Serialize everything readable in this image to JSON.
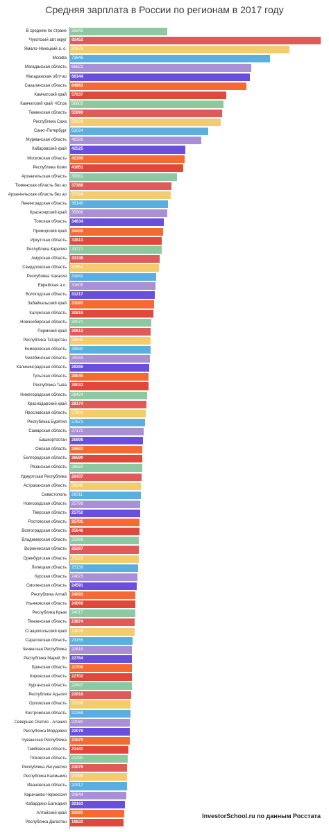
{
  "title": "Средняя зарплата в России по регионам в 2017 году",
  "source": "InvestorSchool.ru по данным Росстата",
  "chart_data": {
    "type": "bar",
    "orientation": "horizontal",
    "title": "Средняя зарплата в России по регионам в 2017 году",
    "xlabel": "",
    "ylabel": "",
    "xlim": [
      0,
      92452
    ],
    "grid": false,
    "categories": [
      "В среднем по стране",
      "Чукотский авт.округ",
      "Ямало-Ненецкий а. о.",
      "Москва",
      "Магаданская область",
      "Магаданская обл+ао",
      "Сахалинская область",
      "Камчатский край",
      "Камчатский край +Югра",
      "Тюменская область",
      "Республика Саха",
      "Санкт-Петербург",
      "Мурманская область",
      "Хабаровский край",
      "Московская область",
      "Республика Коми",
      "Архангельская область",
      "Тюменская область без ао",
      "Архангельская область без ао",
      "Ленинградская область",
      "Красноярский край",
      "Томская область",
      "Приморский край",
      "Иркутская область",
      "Республика Карелия",
      "Амурская область",
      "Свердловская область",
      "Республика Хакасия",
      "Еврейская а.о.",
      "Вологодская область",
      "Забайкальский край",
      "Калужская область",
      "Новосибирская область",
      "Пермский край",
      "Республика Татарстан",
      "Кемеровская область",
      "Челябинская область",
      "Калининградская область",
      "Тульская область",
      "Республика Тыва",
      "Нижегородская область",
      "Краснодарский край",
      "Ярославская область",
      "Республика Бурятия",
      "Самарская область",
      "Башкортостан",
      "Омская область",
      "Белгородская область",
      "Рязанская область",
      "Удмуртская Республика",
      "Астраханская область",
      "Севастополь",
      "Новгородская область",
      "Тверская область",
      "Ростовская область",
      "Волгоградская область",
      "Владимирская область",
      "Воронежская область",
      "Оренбургская область",
      "Липецкая область",
      "Курская область",
      "Смоленская область",
      "Республика Алтай",
      "Ульяновская область",
      "Республика Крым",
      "Пензенская область",
      "Ставропольский край",
      "Саратовская область",
      "Чеченская Республика",
      "Республика Марий Эл",
      "Брянская область",
      "Кировская область",
      "Курганская область",
      "Республика Адыгея",
      "Орловская область",
      "Костромская область",
      "Северная Осетия - Алания",
      "Республика Мордовия",
      "Чувашская Республика",
      "Тамбовская область",
      "Псковская область",
      "Республика Ингушетия",
      "Республика Калмыкия",
      "Ивановская область",
      "Карачаево-Черкессия",
      "Кабардино-Балкария",
      "Алтайский край",
      "Республика Дагестан"
    ],
    "values": [
      35845,
      92452,
      80876,
      73846,
      66821,
      66344,
      64963,
      57637,
      56605,
      55990,
      55628,
      51024,
      48328,
      42525,
      42189,
      41851,
      39381,
      37388,
      37094,
      36140,
      35886,
      34634,
      34439,
      33813,
      33771,
      33136,
      32854,
      31841,
      31605,
      31217,
      31093,
      30818,
      30071,
      29812,
      29645,
      29590,
      29334,
      29255,
      29045,
      29032,
      28424,
      28174,
      27900,
      27671,
      27172,
      26998,
      26693,
      26590,
      26550,
      26437,
      26040,
      26011,
      25799,
      25752,
      25705,
      25646,
      25369,
      25287,
      25229,
      25139,
      24823,
      24591,
      24093,
      24069,
      24017,
      23874,
      23835,
      23155,
      22819,
      22764,
      22706,
      22702,
      22697,
      22618,
      22336,
      22268,
      22080,
      22078,
      21979,
      21441,
      21290,
      21078,
      20999,
      20917,
      20844,
      20163,
      20091,
      19632
    ],
    "bar_colors": [
      "#8dc9a0",
      "#e05a5a",
      "#f3cc6e",
      "#5aafe0",
      "#a98fd4",
      "#6a4fdc",
      "#f56a32",
      "#e0483b"
    ],
    "value_label_colors": [
      "#ffffff",
      "#ffffff",
      "#ffffff",
      "#ffffff",
      "#ffffff",
      "#ffffff",
      "#ffffff",
      "#ffffff"
    ]
  }
}
